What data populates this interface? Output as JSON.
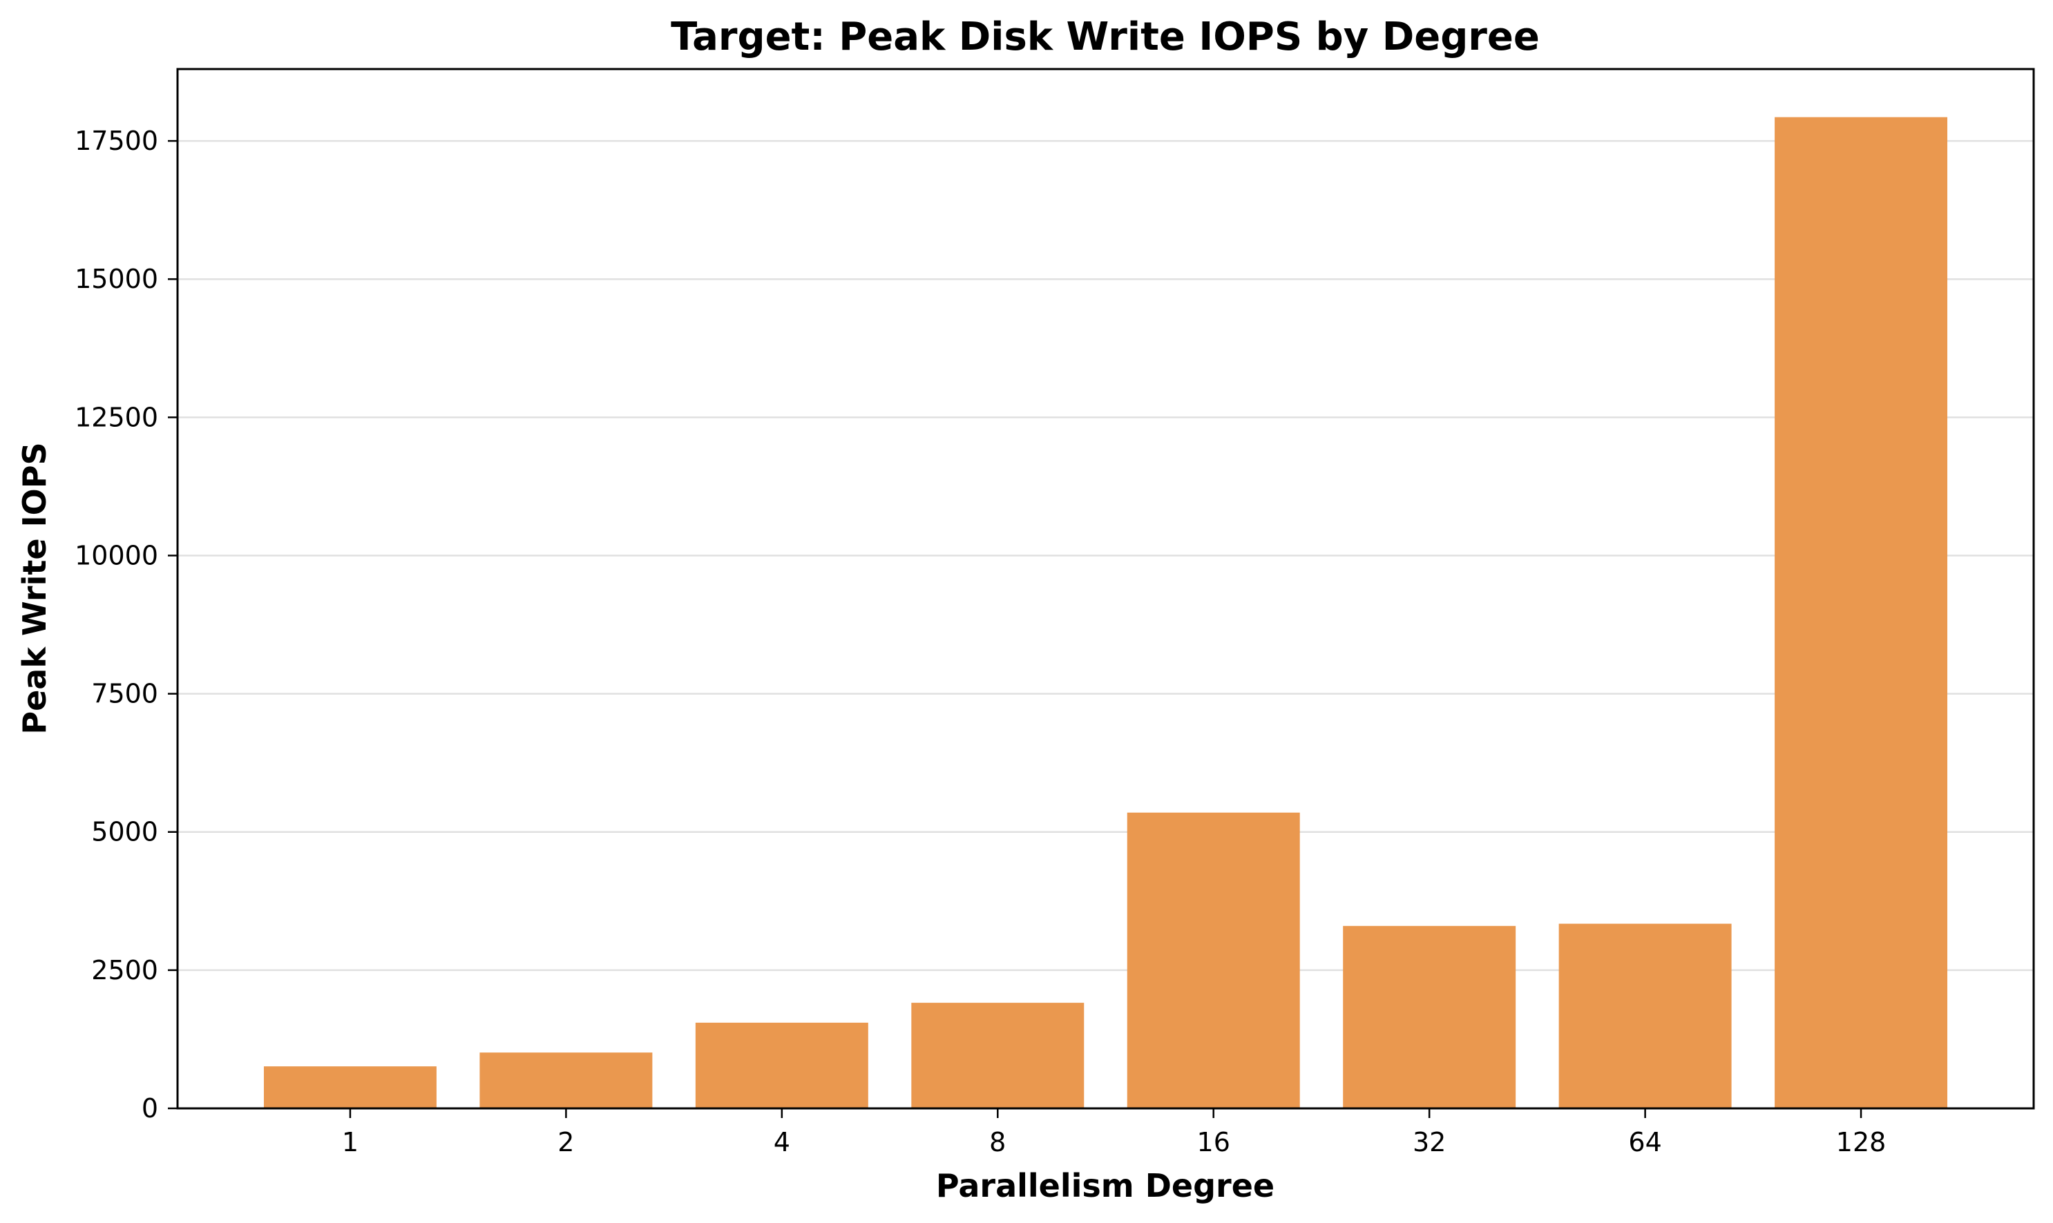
{
  "chart_data": {
    "type": "bar",
    "title": "Target: Peak Disk Write IOPS by Degree",
    "xlabel": "Parallelism Degree",
    "ylabel": "Peak Write IOPS",
    "categories": [
      "1",
      "2",
      "4",
      "8",
      "16",
      "32",
      "64",
      "128"
    ],
    "values": [
      760,
      1010,
      1550,
      1910,
      5350,
      3300,
      3340,
      17930
    ],
    "ylim": [
      0,
      18800
    ],
    "yticks": [
      0,
      2500,
      5000,
      7500,
      10000,
      12500,
      15000,
      17500
    ],
    "ytick_labels": [
      "0",
      "2500",
      "5000",
      "7500",
      "10000",
      "12500",
      "15000",
      "17500"
    ],
    "grid": "horizontal",
    "legend": "none",
    "bar_color": "#ea984f",
    "grid_color": "#e0e0e0",
    "axis_color": "#000000"
  }
}
